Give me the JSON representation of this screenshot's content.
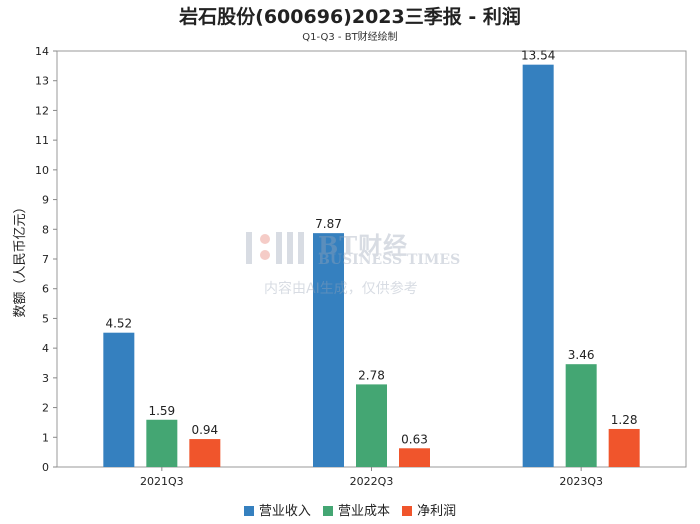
{
  "colors": {
    "revenue": "#3580bf",
    "cost": "#44a673",
    "profit": "#f0552c"
  },
  "chart_data": {
    "type": "bar",
    "title": "岩石股份(600696)2023三季报 - 利润",
    "subtitle": "Q1-Q3 - BT财经绘制",
    "xlabel": "",
    "ylabel": "数额（人民币亿元）",
    "ylim": [
      0,
      14
    ],
    "yticks": [
      "0",
      "1",
      "2",
      "3",
      "4",
      "5",
      "6",
      "7",
      "8",
      "9",
      "10",
      "11",
      "12",
      "13",
      "14"
    ],
    "grid": false,
    "legend_position": "bottom",
    "categories": [
      "2021Q3",
      "2022Q3",
      "2023Q3"
    ],
    "series": [
      {
        "name": "营业收入",
        "color_key": "revenue",
        "values": [
          4.52,
          7.87,
          13.54
        ],
        "labels": [
          "4.52",
          "7.87",
          "13.54"
        ]
      },
      {
        "name": "营业成本",
        "color_key": "cost",
        "values": [
          1.59,
          2.78,
          3.46
        ],
        "labels": [
          "1.59",
          "2.78",
          "3.46"
        ]
      },
      {
        "name": "净利润",
        "color_key": "profit",
        "values": [
          0.94,
          0.63,
          1.28
        ],
        "labels": [
          "0.94",
          "0.63",
          "1.28"
        ]
      }
    ]
  },
  "watermark": {
    "brand": "BT财经",
    "brand_en": "BUSINESS TIMES",
    "note": "内容由AI生成，仅供参考"
  }
}
